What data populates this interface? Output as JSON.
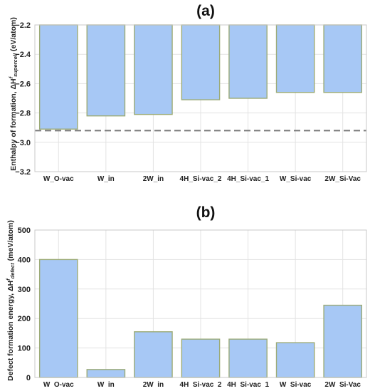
{
  "colors": {
    "bar_fill": "#a7c8f5",
    "bar_stroke": "#9cab77",
    "grid": "#e3e3e3",
    "axis": "#c8c8c8",
    "ref_line": "#7a7a7a",
    "text": "#222222"
  },
  "chart_data": [
    {
      "type": "bar",
      "title": "(a)",
      "xlabel": "",
      "ylabel_main": "Enthalpy of formation, ΔH",
      "ylabel_sup": "f",
      "ylabel_sub": "supercell",
      "ylabel_unit": " (eV/atom)",
      "categories": [
        "W_O-vac",
        "W_in",
        "2W_in",
        "4H_Si-vac_2",
        "4H_Si-vac_1",
        "W_Si-vac",
        "2W_Si-Vac"
      ],
      "values": [
        -2.91,
        -2.82,
        -2.81,
        -2.71,
        -2.7,
        -2.66,
        -2.66
      ],
      "baseline": -2.2,
      "ylim": [
        -3.2,
        -2.2
      ],
      "yticks": [
        -2.2,
        -2.4,
        -2.6,
        -2.8,
        -3.0,
        -3.2
      ],
      "ytick_labels": [
        "−2.2",
        "−2.4",
        "−2.6",
        "−2.8",
        "−3.0",
        "−3.2"
      ],
      "reference_line": -2.92,
      "grid": true
    },
    {
      "type": "bar",
      "title": "(b)",
      "xlabel": "",
      "ylabel_main": "Defect formation energy, ΔH",
      "ylabel_sup": "f",
      "ylabel_sub": "defect",
      "ylabel_unit": " (meV/atom)",
      "categories": [
        "W_O-vac",
        "W_in",
        "2W_in",
        "4H_Si-vac_2",
        "4H_Si-vac_1",
        "W_Si-vac",
        "2W_Si-Vac"
      ],
      "values": [
        400,
        27,
        155,
        130,
        130,
        118,
        245
      ],
      "baseline": 0,
      "ylim": [
        0,
        500
      ],
      "yticks": [
        0,
        100,
        200,
        300,
        400,
        500
      ],
      "ytick_labels": [
        "0",
        "100",
        "200",
        "300",
        "400",
        "500"
      ],
      "grid": true
    }
  ]
}
